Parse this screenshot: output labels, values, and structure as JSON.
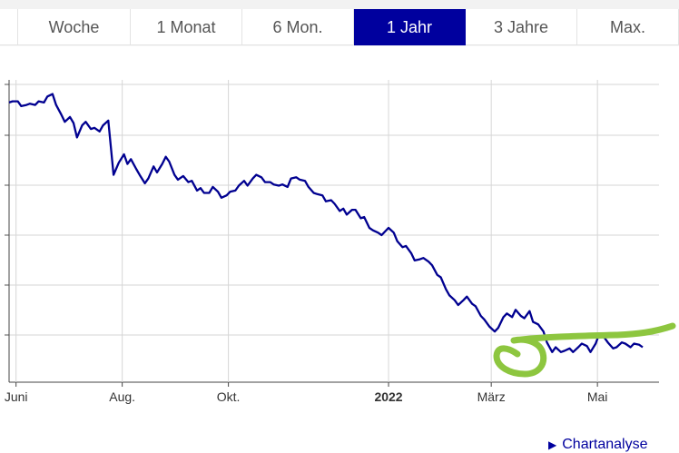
{
  "colors": {
    "accent": "#00009e",
    "series_line": "#000090",
    "marker": "#8dc63f"
  },
  "range_tabs": [
    {
      "label": "Woche",
      "active": false
    },
    {
      "label": "1 Monat",
      "active": false
    },
    {
      "label": "6 Mon.",
      "active": false
    },
    {
      "label": "1 Jahr",
      "active": true
    },
    {
      "label": "3 Jahre",
      "active": false
    },
    {
      "label": "Max.",
      "active": false
    }
  ],
  "chart_data": {
    "type": "line",
    "grid": true,
    "x_tick_labels": [
      {
        "label": "Juni",
        "date": "2021-06-01",
        "bold": false
      },
      {
        "label": "Aug.",
        "date": "2021-08-01",
        "bold": false
      },
      {
        "label": "Okt.",
        "date": "2021-10-01",
        "bold": false
      },
      {
        "label": "2022",
        "date": "2022-01-01",
        "bold": true
      },
      {
        "label": "März",
        "date": "2022-03-01",
        "bold": false
      },
      {
        "label": "Mai",
        "date": "2022-05-01",
        "bold": false
      }
    ],
    "series": [
      {
        "values": [
          [
            "2021-05-28",
            82
          ],
          [
            "2021-05-30",
            83
          ],
          [
            "2021-06-02",
            83
          ],
          [
            "2021-06-04",
            79
          ],
          [
            "2021-06-07",
            80
          ],
          [
            "2021-06-09",
            81
          ],
          [
            "2021-06-12",
            80
          ],
          [
            "2021-06-14",
            83
          ],
          [
            "2021-06-17",
            82
          ],
          [
            "2021-06-19",
            87
          ],
          [
            "2021-06-22",
            89
          ],
          [
            "2021-06-24",
            80
          ],
          [
            "2021-06-27",
            72
          ],
          [
            "2021-06-29",
            66
          ],
          [
            "2021-07-02",
            70
          ],
          [
            "2021-07-04",
            65
          ],
          [
            "2021-07-06",
            53
          ],
          [
            "2021-07-09",
            63
          ],
          [
            "2021-07-11",
            66
          ],
          [
            "2021-07-14",
            60
          ],
          [
            "2021-07-16",
            61
          ],
          [
            "2021-07-19",
            58
          ],
          [
            "2021-07-21",
            63
          ],
          [
            "2021-07-24",
            67
          ],
          [
            "2021-07-27",
            22
          ],
          [
            "2021-07-30",
            32
          ],
          [
            "2021-08-02",
            39
          ],
          [
            "2021-08-04",
            31
          ],
          [
            "2021-08-06",
            35
          ],
          [
            "2021-08-09",
            27
          ],
          [
            "2021-08-11",
            22
          ],
          [
            "2021-08-14",
            15
          ],
          [
            "2021-08-16",
            19
          ],
          [
            "2021-08-19",
            29
          ],
          [
            "2021-08-21",
            24
          ],
          [
            "2021-08-24",
            31
          ],
          [
            "2021-08-26",
            37
          ],
          [
            "2021-08-28",
            33
          ],
          [
            "2021-08-31",
            22
          ],
          [
            "2021-09-02",
            18
          ],
          [
            "2021-09-05",
            21
          ],
          [
            "2021-09-08",
            16
          ],
          [
            "2021-09-10",
            17
          ],
          [
            "2021-09-13",
            9
          ],
          [
            "2021-09-15",
            11
          ],
          [
            "2021-09-17",
            7
          ],
          [
            "2021-09-20",
            7
          ],
          [
            "2021-09-22",
            12
          ],
          [
            "2021-09-25",
            8
          ],
          [
            "2021-09-27",
            3
          ],
          [
            "2021-09-30",
            5
          ],
          [
            "2021-10-02",
            8
          ],
          [
            "2021-10-05",
            9
          ],
          [
            "2021-10-07",
            13
          ],
          [
            "2021-10-10",
            17
          ],
          [
            "2021-10-12",
            13
          ],
          [
            "2021-10-15",
            19
          ],
          [
            "2021-10-17",
            22
          ],
          [
            "2021-10-20",
            20
          ],
          [
            "2021-10-22",
            16
          ],
          [
            "2021-10-25",
            16
          ],
          [
            "2021-10-27",
            14
          ],
          [
            "2021-10-30",
            13
          ],
          [
            "2021-11-01",
            14
          ],
          [
            "2021-11-04",
            12
          ],
          [
            "2021-11-06",
            19
          ],
          [
            "2021-11-09",
            20
          ],
          [
            "2021-11-11",
            18
          ],
          [
            "2021-11-14",
            17
          ],
          [
            "2021-11-16",
            12
          ],
          [
            "2021-11-19",
            7
          ],
          [
            "2021-11-21",
            6
          ],
          [
            "2021-11-24",
            5
          ],
          [
            "2021-11-26",
            0
          ],
          [
            "2021-11-29",
            1
          ],
          [
            "2021-12-01",
            -2
          ],
          [
            "2021-12-04",
            -8
          ],
          [
            "2021-12-06",
            -6
          ],
          [
            "2021-12-08",
            -11
          ],
          [
            "2021-12-11",
            -7
          ],
          [
            "2021-12-13",
            -7
          ],
          [
            "2021-12-16",
            -14
          ],
          [
            "2021-12-18",
            -13
          ],
          [
            "2021-12-21",
            -22
          ],
          [
            "2021-12-23",
            -24
          ],
          [
            "2021-12-26",
            -26
          ],
          [
            "2021-12-28",
            -28
          ],
          [
            "2022-01-01",
            -22
          ],
          [
            "2022-01-04",
            -26
          ],
          [
            "2022-01-06",
            -33
          ],
          [
            "2022-01-09",
            -38
          ],
          [
            "2022-01-11",
            -37
          ],
          [
            "2022-01-14",
            -43
          ],
          [
            "2022-01-16",
            -49
          ],
          [
            "2022-01-19",
            -48
          ],
          [
            "2022-01-21",
            -47
          ],
          [
            "2022-01-24",
            -50
          ],
          [
            "2022-01-26",
            -53
          ],
          [
            "2022-01-29",
            -61
          ],
          [
            "2022-01-31",
            -63
          ],
          [
            "2022-02-03",
            -73
          ],
          [
            "2022-02-05",
            -78
          ],
          [
            "2022-02-08",
            -82
          ],
          [
            "2022-02-10",
            -86
          ],
          [
            "2022-02-13",
            -82
          ],
          [
            "2022-02-15",
            -79
          ],
          [
            "2022-02-18",
            -85
          ],
          [
            "2022-02-20",
            -87
          ],
          [
            "2022-02-23",
            -95
          ],
          [
            "2022-02-25",
            -98
          ],
          [
            "2022-02-28",
            -104
          ],
          [
            "2022-03-03",
            -108
          ],
          [
            "2022-03-05",
            -105
          ],
          [
            "2022-03-08",
            -96
          ],
          [
            "2022-03-10",
            -93
          ],
          [
            "2022-03-13",
            -96
          ],
          [
            "2022-03-15",
            -90
          ],
          [
            "2022-03-18",
            -95
          ],
          [
            "2022-03-20",
            -97
          ],
          [
            "2022-03-23",
            -91
          ],
          [
            "2022-03-25",
            -100
          ],
          [
            "2022-03-28",
            -102
          ],
          [
            "2022-03-31",
            -108
          ],
          [
            "2022-04-02",
            -117
          ],
          [
            "2022-04-05",
            -125
          ],
          [
            "2022-04-07",
            -121
          ],
          [
            "2022-04-10",
            -125
          ],
          [
            "2022-04-12",
            -124
          ],
          [
            "2022-04-15",
            -122
          ],
          [
            "2022-04-17",
            -125
          ],
          [
            "2022-04-20",
            -121
          ],
          [
            "2022-04-22",
            -118
          ],
          [
            "2022-04-25",
            -120
          ],
          [
            "2022-04-27",
            -125
          ],
          [
            "2022-04-30",
            -118
          ],
          [
            "2022-05-02",
            -110
          ],
          [
            "2022-05-05",
            -113
          ],
          [
            "2022-05-07",
            -117
          ],
          [
            "2022-05-10",
            -122
          ],
          [
            "2022-05-12",
            -121
          ],
          [
            "2022-05-15",
            -117
          ],
          [
            "2022-05-17",
            -118
          ],
          [
            "2022-05-20",
            -121
          ],
          [
            "2022-05-22",
            -118
          ],
          [
            "2022-05-25",
            -119
          ],
          [
            "2022-05-27",
            -121
          ]
        ]
      }
    ]
  },
  "link": {
    "label": "Chartanalyse"
  }
}
